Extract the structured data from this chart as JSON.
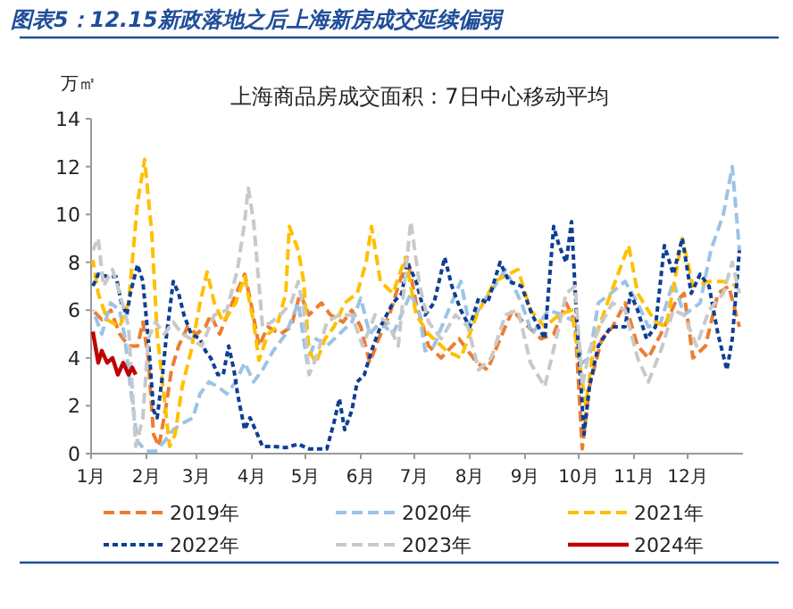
{
  "chart_data": {
    "type": "line",
    "title": "图表5：12.15新政落地之后上海新房成交延续偏弱",
    "subtitle": "上海商品房成交面积：7日中心移动平均",
    "ylabel": "万㎡",
    "xlim": [
      "--01-01",
      "--12-31"
    ],
    "xticks": [
      {
        "value": "--01-01",
        "label": "1月"
      },
      {
        "value": "--02-01",
        "label": "2月"
      },
      {
        "value": "--03-01",
        "label": "3月"
      },
      {
        "value": "--04-01",
        "label": "4月"
      },
      {
        "value": "--05-01",
        "label": "5月"
      },
      {
        "value": "--06-01",
        "label": "6月"
      },
      {
        "value": "--07-01",
        "label": "7月"
      },
      {
        "value": "--08-01",
        "label": "8月"
      },
      {
        "value": "--09-01",
        "label": "9月"
      },
      {
        "value": "--10-01",
        "label": "10月"
      },
      {
        "value": "--11-01",
        "label": "11月"
      },
      {
        "value": "--12-01",
        "label": "12月"
      }
    ],
    "ylim": [
      0,
      14
    ],
    "yticks": [
      0,
      2,
      4,
      6,
      8,
      10,
      12,
      14
    ],
    "grid": false,
    "legend": "bottom",
    "marker": "none",
    "series": [
      {
        "name": "2019年",
        "color": "#ed7d31",
        "line_style": "dashed",
        "x": [
          "--01-02",
          "--01-07",
          "--01-12",
          "--01-17",
          "--01-22",
          "--01-27",
          "--01-30",
          "--02-02",
          "--02-05",
          "--02-08",
          "--02-12",
          "--02-15",
          "--02-19",
          "--02-24",
          "--03-01",
          "--03-06",
          "--03-09",
          "--03-14",
          "--03-21",
          "--03-28",
          "--03-31",
          "--04-05",
          "--04-10",
          "--04-17",
          "--04-23",
          "--04-28",
          "--05-03",
          "--05-10",
          "--05-15",
          "--05-22",
          "--05-27",
          "--06-01",
          "--06-06",
          "--06-11",
          "--06-17",
          "--06-27",
          "--07-02",
          "--07-09",
          "--07-16",
          "--07-26",
          "--08-05",
          "--08-11",
          "--08-18",
          "--08-25",
          "--08-31",
          "--09-10",
          "--09-17",
          "--09-24",
          "--09-29",
          "--10-03",
          "--10-07",
          "--10-14",
          "--10-20",
          "--10-27",
          "--11-03",
          "--11-09",
          "--11-16",
          "--11-24",
          "--11-29",
          "--12-04",
          "--12-11",
          "--12-18",
          "--12-24",
          "--12-30"
        ],
        "values": [
          6.0,
          5.6,
          6.0,
          5.0,
          4.5,
          4.5,
          5.5,
          4.0,
          0.8,
          0.3,
          2.0,
          3.5,
          4.5,
          5.3,
          5.0,
          5.3,
          5.8,
          5.0,
          6.3,
          7.5,
          6.5,
          4.5,
          5.3,
          5.0,
          5.3,
          6.7,
          5.8,
          6.3,
          5.8,
          5.5,
          6.0,
          5.3,
          3.8,
          4.8,
          5.8,
          8.2,
          6.3,
          4.5,
          4.0,
          4.8,
          3.8,
          3.5,
          4.8,
          6.0,
          5.5,
          4.8,
          5.0,
          6.3,
          5.5,
          0.2,
          2.8,
          4.8,
          5.3,
          6.3,
          4.5,
          4.0,
          5.0,
          6.3,
          6.7,
          4.0,
          4.5,
          6.7,
          7.0,
          5.3
        ]
      },
      {
        "name": "2020年",
        "color": "#9dc3e6",
        "line_style": "dashed",
        "x": [
          "--01-02",
          "--01-07",
          "--01-12",
          "--01-17",
          "--01-20",
          "--01-23",
          "--01-27",
          "--02-01",
          "--02-06",
          "--02-11",
          "--02-16",
          "--02-22",
          "--02-27",
          "--03-03",
          "--03-08",
          "--03-13",
          "--03-18",
          "--03-23",
          "--03-28",
          "--04-02",
          "--04-07",
          "--04-13",
          "--04-20",
          "--04-27",
          "--05-02",
          "--05-07",
          "--05-13",
          "--05-20",
          "--05-27",
          "--06-01",
          "--06-06",
          "--06-12",
          "--06-19",
          "--06-29",
          "--07-04",
          "--07-07",
          "--07-12",
          "--07-19",
          "--07-27",
          "--08-01",
          "--08-08",
          "--08-15",
          "--08-21",
          "--08-30",
          "--09-05",
          "--09-14",
          "--09-22",
          "--09-29",
          "--10-03",
          "--10-07",
          "--10-12",
          "--10-19",
          "--10-27",
          "--11-03",
          "--11-09",
          "--11-16",
          "--11-23",
          "--11-29",
          "--12-08",
          "--12-14",
          "--12-21",
          "--12-26",
          "--12-30"
        ],
        "values": [
          6.0,
          5.0,
          6.3,
          6.0,
          4.8,
          2.8,
          0.5,
          0.1,
          0.1,
          0.5,
          1.0,
          1.3,
          1.5,
          2.5,
          3.0,
          2.8,
          2.5,
          3.0,
          3.8,
          3.0,
          3.5,
          4.3,
          5.0,
          6.3,
          3.8,
          4.8,
          4.5,
          5.0,
          5.5,
          6.5,
          5.0,
          5.5,
          5.0,
          6.7,
          5.8,
          4.3,
          4.5,
          5.8,
          7.2,
          5.3,
          6.3,
          7.0,
          7.7,
          6.3,
          5.0,
          6.0,
          5.8,
          5.5,
          3.8,
          4.0,
          6.3,
          6.7,
          7.2,
          6.3,
          5.3,
          5.5,
          7.2,
          5.8,
          6.3,
          8.5,
          10.0,
          12.0,
          8.5
        ]
      },
      {
        "name": "2021年",
        "color": "#ffc000",
        "line_style": "dashed",
        "x": [
          "--01-02",
          "--01-05",
          "--01-10",
          "--01-17",
          "--01-22",
          "--01-27",
          "--01-31",
          "--02-04",
          "--02-07",
          "--02-11",
          "--02-14",
          "--02-17",
          "--02-21",
          "--02-26",
          "--03-03",
          "--03-07",
          "--03-11",
          "--03-16",
          "--03-23",
          "--03-28",
          "--04-02",
          "--04-05",
          "--04-10",
          "--04-15",
          "--04-20",
          "--04-22",
          "--04-27",
          "--04-30",
          "--05-03",
          "--05-07",
          "--05-12",
          "--05-17",
          "--05-23",
          "--05-30",
          "--06-04",
          "--06-07",
          "--06-12",
          "--06-19",
          "--06-26",
          "--07-02",
          "--07-09",
          "--07-19",
          "--07-27",
          "--08-05",
          "--08-15",
          "--08-28",
          "--09-04",
          "--09-12",
          "--09-20",
          "--09-27",
          "--10-02",
          "--10-05",
          "--10-10",
          "--10-19",
          "--10-29",
          "--11-03",
          "--11-13",
          "--11-19",
          "--11-28",
          "--12-04",
          "--12-13",
          "--12-21",
          "--12-29"
        ],
        "values": [
          8.1,
          6.7,
          5.6,
          5.3,
          6.3,
          10.5,
          12.3,
          9.2,
          5.0,
          2.3,
          0.3,
          0.8,
          2.8,
          4.3,
          6.3,
          7.6,
          6.3,
          5.5,
          6.3,
          7.4,
          5.5,
          3.9,
          5.0,
          5.3,
          6.7,
          9.5,
          8.5,
          7.2,
          4.3,
          3.8,
          4.8,
          5.3,
          6.3,
          6.7,
          8.0,
          9.5,
          7.2,
          6.7,
          8.2,
          5.8,
          5.0,
          4.3,
          4.0,
          5.8,
          7.2,
          7.7,
          6.0,
          5.3,
          5.8,
          6.0,
          3.5,
          2.0,
          4.8,
          6.7,
          8.7,
          6.7,
          5.5,
          5.3,
          9.0,
          7.0,
          7.2,
          7.2,
          7.0
        ]
      },
      {
        "name": "2022年",
        "color": "#0e3f94",
        "line_style": "dotted",
        "x": [
          "--01-02",
          "--01-05",
          "--01-10",
          "--01-15",
          "--01-18",
          "--01-21",
          "--01-23",
          "--01-27",
          "--01-30",
          "--02-02",
          "--02-05",
          "--02-07",
          "--02-10",
          "--02-12",
          "--02-16",
          "--02-19",
          "--02-22",
          "--02-26",
          "--03-03",
          "--03-06",
          "--03-09",
          "--03-13",
          "--03-16",
          "--03-19",
          "--03-22",
          "--03-24",
          "--03-28",
          "--03-31",
          "--04-03",
          "--04-07",
          "--04-13",
          "--04-20",
          "--04-27",
          "--05-03",
          "--05-13",
          "--05-17",
          "--05-20",
          "--05-23",
          "--05-27",
          "--05-30",
          "--06-03",
          "--06-07",
          "--06-12",
          "--06-19",
          "--06-24",
          "--06-27",
          "--07-02",
          "--07-07",
          "--07-12",
          "--07-18",
          "--07-22",
          "--07-27",
          "--08-01",
          "--08-06",
          "--08-11",
          "--08-18",
          "--08-23",
          "--08-30",
          "--09-05",
          "--09-12",
          "--09-17",
          "--09-20",
          "--09-24",
          "--09-27",
          "--09-30",
          "--10-04",
          "--10-07",
          "--10-12",
          "--10-19",
          "--10-27",
          "--10-30",
          "--11-03",
          "--11-08",
          "--11-13",
          "--11-18",
          "--11-23",
          "--11-28",
          "--12-03",
          "--12-08",
          "--12-13",
          "--12-18",
          "--12-23",
          "--12-26",
          "--12-30"
        ],
        "values": [
          7.0,
          7.5,
          7.4,
          7.4,
          6.3,
          5.8,
          6.7,
          7.9,
          7.2,
          4.8,
          1.8,
          1.5,
          3.3,
          4.8,
          7.2,
          6.7,
          5.8,
          5.0,
          4.8,
          4.3,
          4.0,
          3.3,
          3.3,
          4.5,
          3.5,
          2.5,
          1.0,
          1.5,
          1.0,
          0.3,
          0.3,
          0.25,
          0.4,
          0.2,
          0.2,
          1.3,
          2.3,
          1.0,
          1.8,
          3.0,
          3.3,
          4.3,
          5.3,
          6.3,
          6.7,
          8.0,
          7.2,
          5.8,
          6.3,
          8.2,
          7.0,
          6.0,
          5.3,
          6.5,
          6.3,
          8.0,
          7.2,
          7.0,
          5.8,
          4.8,
          9.5,
          8.7,
          8.0,
          9.7,
          5.5,
          0.8,
          2.8,
          4.5,
          5.3,
          5.3,
          6.7,
          6.0,
          4.8,
          5.3,
          8.7,
          7.5,
          9.0,
          6.7,
          7.5,
          7.0,
          5.0,
          3.5,
          4.8,
          8.5
        ]
      },
      {
        "name": "2023年",
        "color": "#c9c9c9",
        "line_style": "dashed",
        "x": [
          "--01-02",
          "--01-05",
          "--01-08",
          "--01-13",
          "--01-17",
          "--01-22",
          "--01-24",
          "--01-26",
          "--01-30",
          "--02-02",
          "--02-06",
          "--02-11",
          "--02-16",
          "--02-21",
          "--02-26",
          "--03-04",
          "--03-11",
          "--03-18",
          "--03-24",
          "--03-28",
          "--03-30",
          "--04-02",
          "--04-07",
          "--04-12",
          "--04-17",
          "--04-23",
          "--04-27",
          "--04-30",
          "--05-03",
          "--05-07",
          "--05-13",
          "--05-20",
          "--05-27",
          "--06-02",
          "--06-09",
          "--06-16",
          "--06-22",
          "--06-29",
          "--07-04",
          "--07-09",
          "--07-16",
          "--07-24",
          "--07-31",
          "--08-06",
          "--08-13",
          "--08-21",
          "--08-28",
          "--09-04",
          "--09-12",
          "--09-19",
          "--09-24",
          "--09-29",
          "--10-03",
          "--10-07",
          "--10-14",
          "--10-20",
          "--10-27",
          "--11-03",
          "--11-09",
          "--11-16",
          "--11-23",
          "--11-29",
          "--12-06",
          "--12-13",
          "--12-21",
          "--12-26",
          "--12-30"
        ],
        "values": [
          8.5,
          9.0,
          7.0,
          7.7,
          6.7,
          5.3,
          2.8,
          0.3,
          1.5,
          4.8,
          5.5,
          5.0,
          5.5,
          5.0,
          4.8,
          4.5,
          5.8,
          6.0,
          7.7,
          9.7,
          11.1,
          9.7,
          5.3,
          5.5,
          5.8,
          6.3,
          7.2,
          6.0,
          3.3,
          4.0,
          5.5,
          5.8,
          5.8,
          4.5,
          5.8,
          5.5,
          4.5,
          9.7,
          7.0,
          5.5,
          4.8,
          5.8,
          5.3,
          3.5,
          4.0,
          5.8,
          6.0,
          3.8,
          2.8,
          5.0,
          6.7,
          7.0,
          2.8,
          4.3,
          5.5,
          6.3,
          6.0,
          4.0,
          3.0,
          4.3,
          6.0,
          5.8,
          4.5,
          6.0,
          6.7,
          8.0,
          6.7
        ]
      },
      {
        "name": "2024年",
        "color": "#c00000",
        "line_style": "solid",
        "x": [
          "--01-02",
          "--01-05",
          "--01-07",
          "--01-10",
          "--01-13",
          "--01-16",
          "--01-19",
          "--01-22",
          "--01-24",
          "--01-26"
        ],
        "values": [
          5.1,
          3.8,
          4.3,
          3.8,
          4.0,
          3.3,
          3.8,
          3.3,
          3.6,
          3.3
        ]
      }
    ]
  }
}
